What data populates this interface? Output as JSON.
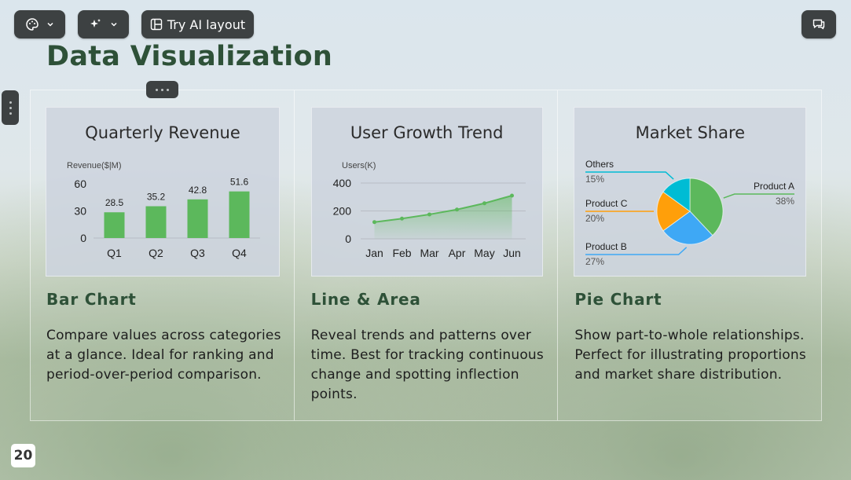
{
  "toolbar": {
    "theme_icon": "palette-icon",
    "ai_icon": "sparkle-icon",
    "try_ai_label": "Try AI layout",
    "comment_icon": "comment-icon"
  },
  "slide": {
    "title": "Data Visualization",
    "page_number": "20"
  },
  "cards": [
    {
      "heading": "Bar Chart",
      "description": "Compare values across categories at a glance. Ideal for ranking and period-over-period comparison."
    },
    {
      "heading": "Line & Area",
      "description": "Reveal trends and patterns over time. Best for tracking continuous change and spotting inflection points."
    },
    {
      "heading": "Pie Chart",
      "description": "Show part-to-whole relationships. Perfect for illustrating proportions and market share distribution."
    }
  ],
  "colors": {
    "title": "#2e5138",
    "bar": "#5cb85c",
    "line": "#5cb85c",
    "pie_a": "#5cb85c",
    "pie_b": "#3ea8f5",
    "pie_c": "#ff9f0a",
    "pie_others": "#00bcd4"
  },
  "chart_data": [
    {
      "type": "bar",
      "title": "Quarterly Revenue",
      "ylabel": "Revenue($|M)",
      "categories": [
        "Q1",
        "Q2",
        "Q3",
        "Q4"
      ],
      "values": [
        28.5,
        35.2,
        42.8,
        51.6
      ],
      "yticks": [
        0,
        30,
        60
      ],
      "ylim": [
        0,
        60
      ],
      "grid": false
    },
    {
      "type": "area",
      "title": "User Growth Trend",
      "ylabel": "Users(K)",
      "categories": [
        "Jan",
        "Feb",
        "Mar",
        "Apr",
        "May",
        "Jun"
      ],
      "values": [
        120,
        145,
        175,
        210,
        255,
        310
      ],
      "yticks": [
        0,
        200,
        400
      ],
      "ylim": [
        0,
        400
      ],
      "grid": true
    },
    {
      "type": "pie",
      "title": "Market Share",
      "slices": [
        {
          "label": "Product A",
          "value": 38,
          "pct": "38%"
        },
        {
          "label": "Product B",
          "value": 27,
          "pct": "27%"
        },
        {
          "label": "Product C",
          "value": 20,
          "pct": "20%"
        },
        {
          "label": "Others",
          "value": 15,
          "pct": "15%"
        }
      ]
    }
  ]
}
